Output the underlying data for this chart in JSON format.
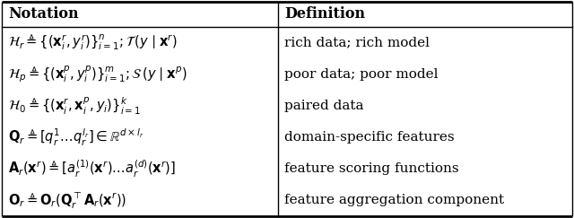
{
  "col_header": [
    "Notation",
    "Definition"
  ],
  "rows": [
    {
      "notation": "$\\mathcal{H}_r \\triangleq \\{(\\mathbf{x}_i^r, y_i^r)\\}_{i=1}^{n}; \\mathcal{T}\\,(y \\mid \\mathbf{x}^r)$",
      "definition": "rich data; rich model"
    },
    {
      "notation": "$\\mathcal{H}_p \\triangleq \\{(\\mathbf{x}_i^p, y_i^p)\\}_{i=1}^{m}; \\mathcal{S}\\,(y \\mid \\mathbf{x}^p)$",
      "definition": "poor data; poor model"
    },
    {
      "notation": "$\\mathcal{H}_0 \\triangleq \\{(\\mathbf{x}_i^r, \\mathbf{x}_i^p, y_i)\\}_{i=1}^{k}$",
      "definition": "paired data"
    },
    {
      "notation": "$\\mathbf{Q}_r \\triangleq [q_r^1 \\ldots q_r^{l_r}] \\in \\mathbb{R}^{d \\times l_r}$",
      "definition": "domain-specific features"
    },
    {
      "notation": "$\\mathbf{A}_r(\\mathbf{x}^r) \\triangleq [a_r^{(1)}(\\mathbf{x}^r) \\ldots a_r^{(d)}(\\mathbf{x}^r)]$",
      "definition": "feature scoring functions"
    },
    {
      "notation": "$\\mathbf{O}_r \\triangleq \\mathbf{O}_r(\\mathbf{Q}_r^\\top \\mathbf{A}_r(\\mathbf{x}^r))$",
      "definition": "feature aggregation component"
    }
  ],
  "col_split": 0.485,
  "bg_color": "#ffffff",
  "border_color": "#000000",
  "text_color": "#000000",
  "header_fontsize": 11.5,
  "row_fontsize": 10.5,
  "def_fontsize": 11.0
}
